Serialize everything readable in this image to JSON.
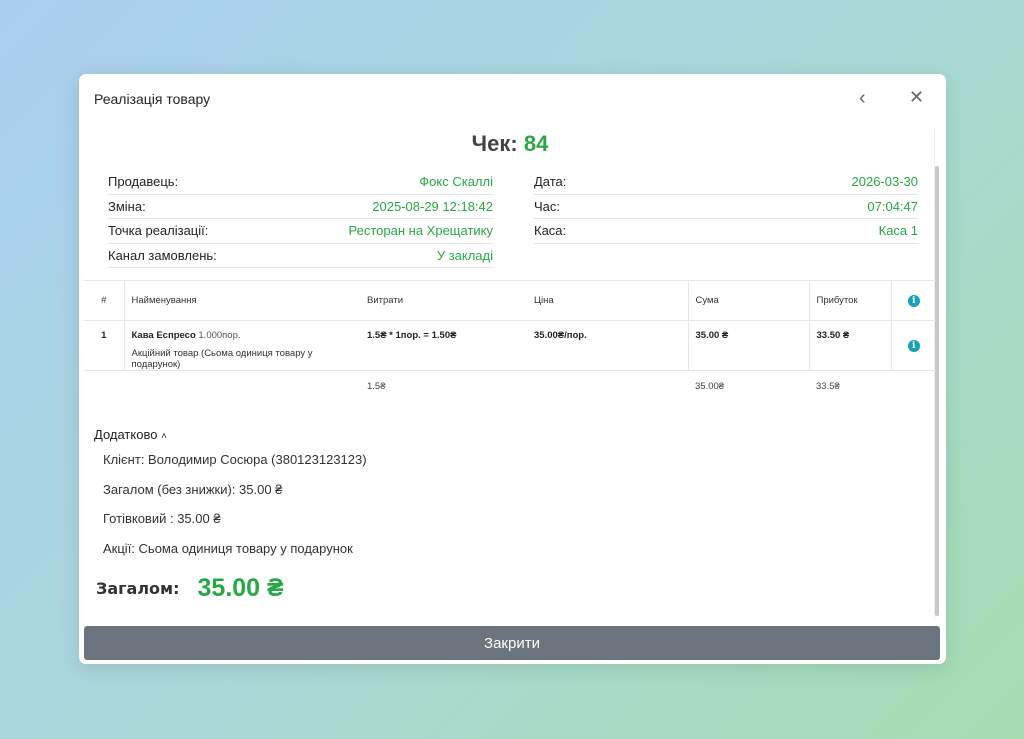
{
  "modal": {
    "title": "Реалізація товару",
    "back_icon": "chevron-left-icon",
    "close_icon": "close-icon"
  },
  "receipt": {
    "label": "Чек:",
    "number": "84"
  },
  "info_left": [
    {
      "label": "Продавець:",
      "value": "Фокс Скаллі"
    },
    {
      "label": "Зміна:",
      "value": "2025-08-29 12:18:42"
    },
    {
      "label": "Точка реалізації:",
      "value": "Ресторан на Хрещатику"
    },
    {
      "label": "Канал замовлень:",
      "value": "У закладі"
    }
  ],
  "info_right": [
    {
      "label": "Дата:",
      "value": "2026-03-30"
    },
    {
      "label": "Час:",
      "value": "07:04:47"
    },
    {
      "label": "Каса:",
      "value": "Каса 1"
    }
  ],
  "table": {
    "headers": [
      "#",
      "Найменування",
      "Витрати",
      "Ціна",
      "Сума",
      "Прибуток"
    ],
    "rows": [
      {
        "index": "1",
        "name": "Кава Еспресо",
        "qty": "1.000пор.",
        "note": "Акційний товар (Сьома одиниця товару у подарунок)",
        "cost": "1.5₴ * 1пор. = 1.50₴",
        "price": "35.00₴/пор.",
        "sum": "35.00 ₴",
        "profit": "33.50 ₴"
      }
    ],
    "totals": {
      "cost": "1.5₴",
      "sum": "35.00₴",
      "profit": "33.5₴"
    }
  },
  "extra": {
    "toggle": "Додатково",
    "lines": [
      "Клієнт: Володимир Сосюра (380123123123)",
      "Загалом (без знижки): 35.00 ₴",
      "Готівковий : 35.00 ₴",
      "Акції: Сьома одиниця товару у подарунок"
    ]
  },
  "total": {
    "label": "Загалом:",
    "value": "35.00 ₴"
  },
  "close_button": "Закрити",
  "colors": {
    "accent": "#28a745",
    "info": "#17a2b8",
    "button": "#6c757d"
  }
}
